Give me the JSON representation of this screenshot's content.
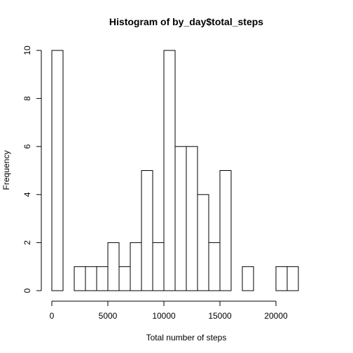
{
  "chart_data": {
    "type": "bar",
    "title": "Histogram of by_day$total_steps",
    "xlabel": "Total number of steps",
    "ylabel": "Frequency",
    "bin_width": 1000,
    "bin_starts": [
      0,
      1000,
      2000,
      3000,
      4000,
      5000,
      6000,
      7000,
      8000,
      9000,
      10000,
      11000,
      12000,
      13000,
      14000,
      15000,
      16000,
      17000,
      18000,
      19000,
      20000,
      21000
    ],
    "values": [
      10,
      0,
      1,
      1,
      1,
      2,
      1,
      2,
      5,
      2,
      10,
      6,
      6,
      4,
      2,
      5,
      0,
      1,
      0,
      0,
      1,
      1
    ],
    "xlim": [
      0,
      24000
    ],
    "ylim": [
      0,
      10
    ],
    "x_ticks": [
      0,
      5000,
      10000,
      15000,
      20000
    ],
    "x_tick_labels": [
      "0",
      "5000",
      "10000",
      "15000",
      "20000"
    ],
    "y_ticks": [
      0,
      2,
      4,
      6,
      8,
      10
    ],
    "y_tick_labels": [
      "0",
      "2",
      "4",
      "6",
      "8",
      "10"
    ],
    "grid": false,
    "bar_fill": "#ffffff",
    "bar_stroke": "#000000"
  }
}
